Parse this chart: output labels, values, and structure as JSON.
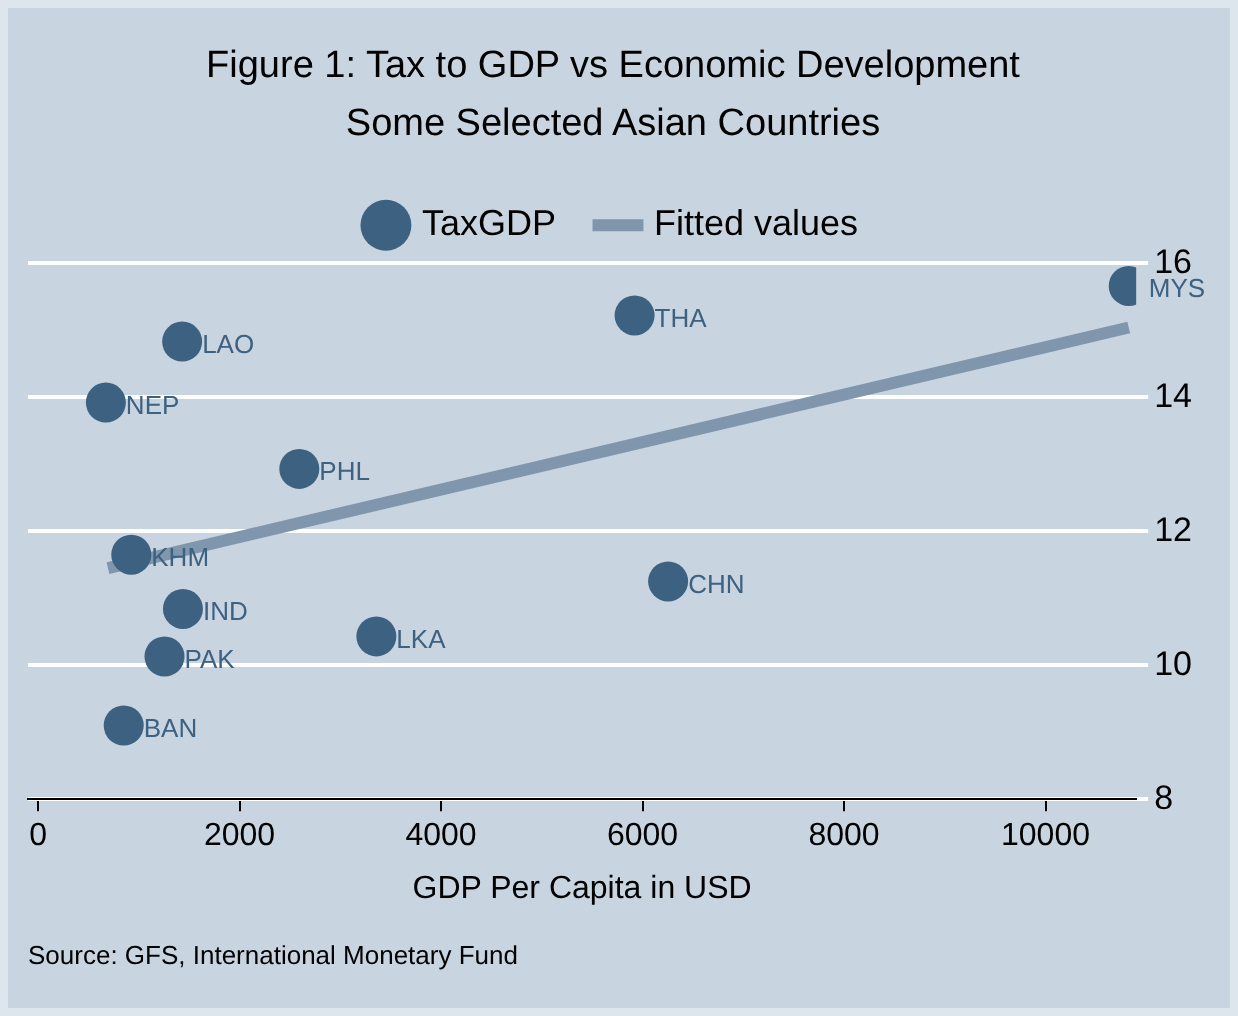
{
  "chart_data": {
    "type": "scatter",
    "title": "Figure 1: Tax to GDP vs Economic Development",
    "subtitle": "Some Selected Asian Countries",
    "xlabel": "GDP Per Capita in USD",
    "annotations": [
      "Source: GFS, International Monetary Fund"
    ],
    "xlim": [
      -100,
      10900
    ],
    "xticks": [
      0,
      2000,
      4000,
      6000,
      8000,
      10000
    ],
    "ylim": [
      8,
      16
    ],
    "yticks": [
      8,
      10,
      12,
      14,
      16
    ],
    "grid": "y",
    "legend": "top",
    "series": [
      {
        "name": "TaxGDP",
        "marker": "circle",
        "color": "#3d6180",
        "x": [
          1430,
          673,
          2593,
          925,
          1438,
          1255,
          3358,
          850,
          5921,
          6254,
          10826
        ],
        "values": [
          14.83,
          13.92,
          12.93,
          11.65,
          10.84,
          10.13,
          10.43,
          9.1,
          15.22,
          11.25,
          15.66
        ],
        "value_labels": [
          "LAO",
          "NEP",
          "PHL",
          "KHM",
          "IND",
          "PAK",
          "LKA",
          "BAN",
          "THA",
          "CHN",
          "MYS"
        ]
      },
      {
        "name": "Fitted values",
        "type": "line",
        "marker": "none",
        "color": "#7f96ad",
        "x": [
          694,
          10826
        ],
        "values": [
          11.45,
          15.04
        ]
      }
    ]
  }
}
